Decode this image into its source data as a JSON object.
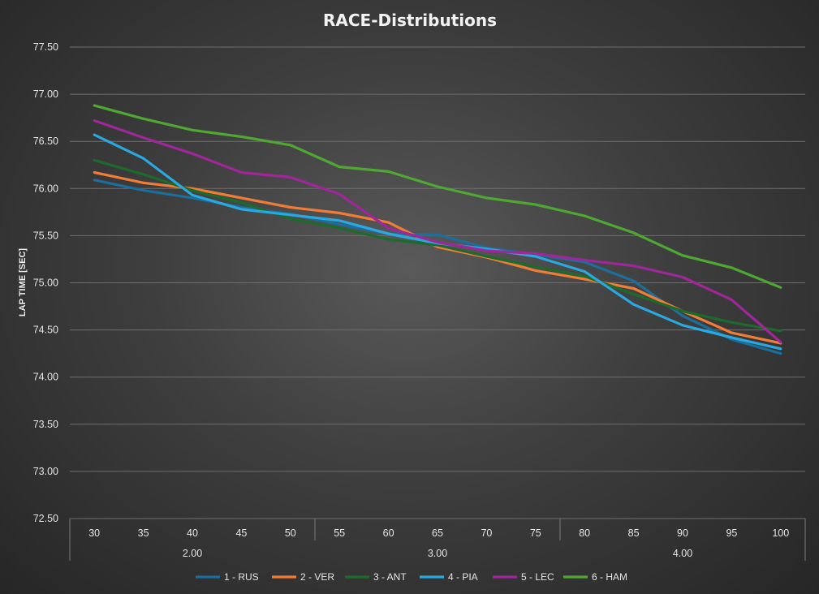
{
  "chart_data": {
    "type": "line",
    "title": "RACE-Distributions",
    "ylabel": "LAP TIME [SEC]",
    "xlabel": "",
    "ylim": [
      72.5,
      77.5
    ],
    "yticks": [
      "72.50",
      "73.00",
      "73.50",
      "74.00",
      "74.50",
      "75.00",
      "75.50",
      "76.00",
      "76.50",
      "77.00",
      "77.50"
    ],
    "categories": [
      "30",
      "35",
      "40",
      "45",
      "50",
      "55",
      "60",
      "65",
      "70",
      "75",
      "80",
      "85",
      "90",
      "95",
      "100"
    ],
    "groups": [
      {
        "label": "2.00",
        "span": 5
      },
      {
        "label": "3.00",
        "span": 5
      },
      {
        "label": "4.00",
        "span": 5
      }
    ],
    "grid": true,
    "legend_position": "bottom",
    "series": [
      {
        "name": "1 - RUS",
        "color": "#1b6e9e",
        "values": [
          76.09,
          75.98,
          75.9,
          75.8,
          75.73,
          75.62,
          75.52,
          75.51,
          75.37,
          75.3,
          75.22,
          75.02,
          74.65,
          74.4,
          74.25
        ]
      },
      {
        "name": "2 - VER",
        "color": "#f07d36",
        "values": [
          76.17,
          76.06,
          76.0,
          75.9,
          75.8,
          75.74,
          75.64,
          75.38,
          75.27,
          75.13,
          75.04,
          74.94,
          74.7,
          74.47,
          74.36
        ]
      },
      {
        "name": "3 - ANT",
        "color": "#1d6b2c",
        "values": [
          76.3,
          76.15,
          75.98,
          75.85,
          75.68,
          75.58,
          75.46,
          75.4,
          75.28,
          75.17,
          75.07,
          74.88,
          74.7,
          74.58,
          74.49
        ]
      },
      {
        "name": "4 - PIA",
        "color": "#2aa8e0",
        "values": [
          76.57,
          76.32,
          75.93,
          75.78,
          75.72,
          75.66,
          75.52,
          75.42,
          75.36,
          75.28,
          75.12,
          74.77,
          74.55,
          74.42,
          74.3
        ]
      },
      {
        "name": "5 - LEC",
        "color": "#a0279a",
        "values": [
          76.72,
          76.54,
          76.37,
          76.17,
          76.12,
          75.94,
          75.58,
          75.43,
          75.34,
          75.31,
          75.24,
          75.18,
          75.06,
          74.82,
          74.37
        ]
      },
      {
        "name": "6 - HAM",
        "color": "#4ea832",
        "values": [
          76.88,
          76.74,
          76.62,
          76.55,
          76.46,
          76.23,
          76.18,
          76.02,
          75.9,
          75.83,
          75.71,
          75.53,
          75.29,
          75.16,
          74.95
        ]
      }
    ]
  }
}
